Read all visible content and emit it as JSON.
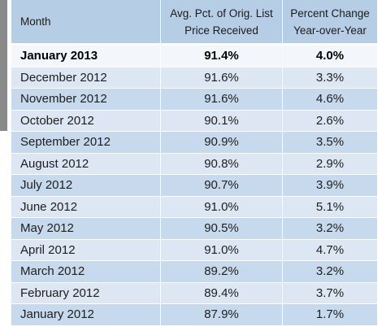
{
  "chart_data": {
    "type": "table",
    "columns": [
      "Month",
      "Avg. Pct. of Orig. List\nPrice Received",
      "Percent Change\nYear-over-Year"
    ],
    "rows": [
      {
        "month": "January 2013",
        "pct_list": "91.4%",
        "yoy": "4.0%"
      },
      {
        "month": "December 2012",
        "pct_list": "91.6%",
        "yoy": "3.3%"
      },
      {
        "month": "November 2012",
        "pct_list": "91.6%",
        "yoy": "4.6%"
      },
      {
        "month": "October 2012",
        "pct_list": "90.1%",
        "yoy": "2.6%"
      },
      {
        "month": "September 2012",
        "pct_list": "90.9%",
        "yoy": "3.5%"
      },
      {
        "month": "August 2012",
        "pct_list": "90.8%",
        "yoy": "2.9%"
      },
      {
        "month": "July 2012",
        "pct_list": "90.7%",
        "yoy": "3.9%"
      },
      {
        "month": "June 2012",
        "pct_list": "91.0%",
        "yoy": "5.1%"
      },
      {
        "month": "May 2012",
        "pct_list": "90.5%",
        "yoy": "3.2%"
      },
      {
        "month": "April 2012",
        "pct_list": "91.0%",
        "yoy": "4.7%"
      },
      {
        "month": "March 2012",
        "pct_list": "89.2%",
        "yoy": "3.2%"
      },
      {
        "month": "February 2012",
        "pct_list": "89.4%",
        "yoy": "3.7%"
      },
      {
        "month": "January 2012",
        "pct_list": "87.9%",
        "yoy": "1.7%"
      }
    ],
    "highlight_row": 0
  },
  "colors": {
    "header_bg": "#b6cde6",
    "row_a": "#dce7f3",
    "row_b": "#c7d9ec",
    "highlight_bg": "#f3f6fa",
    "side_bar": "#8a8a8a"
  }
}
